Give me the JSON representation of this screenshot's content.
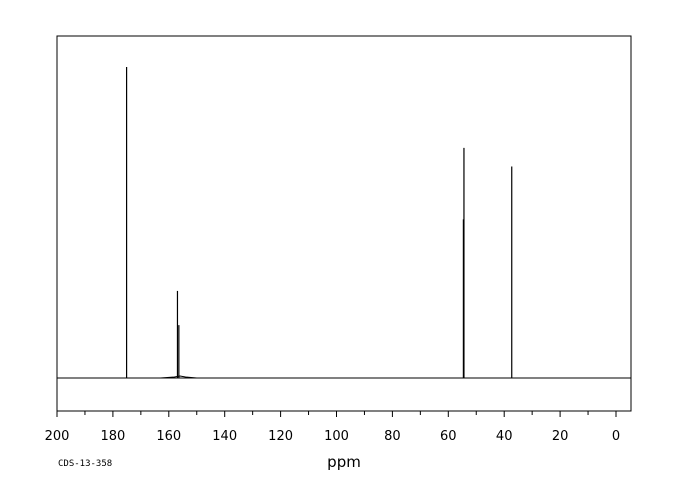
{
  "chart_data": {
    "type": "line",
    "title": "",
    "xlabel": "ppm",
    "ylabel": "",
    "xlim": [
      200,
      0
    ],
    "x_reversed": true,
    "ylim": [
      -0.1,
      1.0
    ],
    "x_major_ticks": [
      200,
      180,
      160,
      140,
      120,
      100,
      80,
      60,
      40,
      20,
      0
    ],
    "x_minor_step": 10,
    "grid": false,
    "legend": "none",
    "peaks": [
      {
        "ppm": 175.1,
        "height": 1.0
      },
      {
        "ppm": 156.9,
        "height": 0.28
      },
      {
        "ppm": 156.4,
        "height": 0.17
      },
      {
        "ppm": 54.4,
        "height": 0.74
      },
      {
        "ppm": 54.6,
        "height": 0.51
      },
      {
        "ppm": 37.3,
        "height": 0.68
      }
    ],
    "baseline": 0,
    "annotation": "CDS-13-358",
    "line_color": "#000000"
  }
}
